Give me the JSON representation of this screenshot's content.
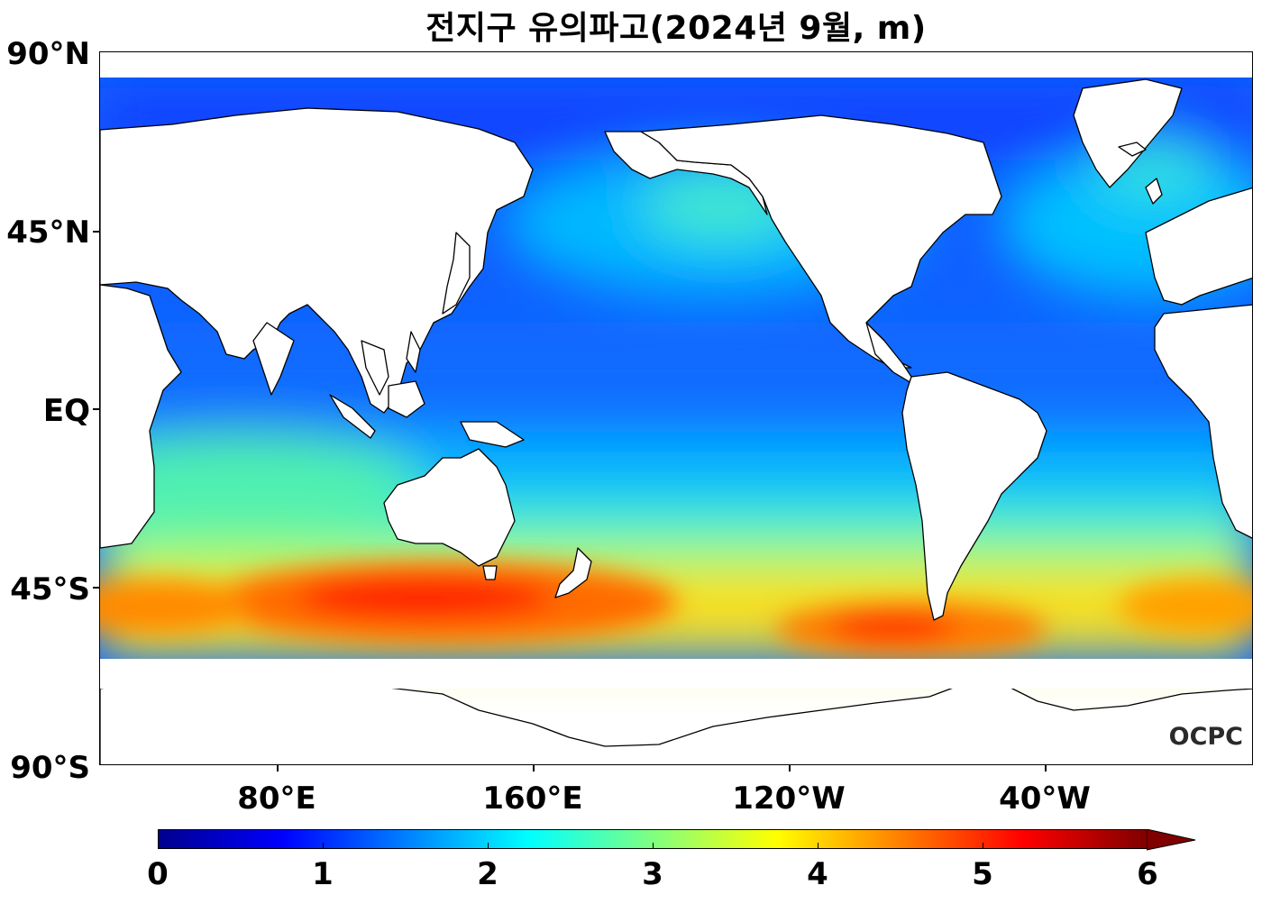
{
  "title": "전지구 유의파고(2024년 9월, m)",
  "map": {
    "lat_labels": [
      "90°N",
      "45°N",
      "EQ",
      "45°S",
      "90°S"
    ],
    "lon_labels": [
      "80°E",
      "160°E",
      "120°W",
      "40°W"
    ],
    "watermark": "OCPC"
  },
  "colorbar": {
    "colormap": "jet",
    "min": 0,
    "max": 6,
    "extend": "max",
    "tick_labels": [
      "0",
      "1",
      "2",
      "3",
      "4",
      "5",
      "6"
    ],
    "colors": [
      "#00008f",
      "#0000ff",
      "#0080ff",
      "#00ffff",
      "#80ff80",
      "#ffff00",
      "#ff8000",
      "#ff0000",
      "#800000"
    ]
  }
}
